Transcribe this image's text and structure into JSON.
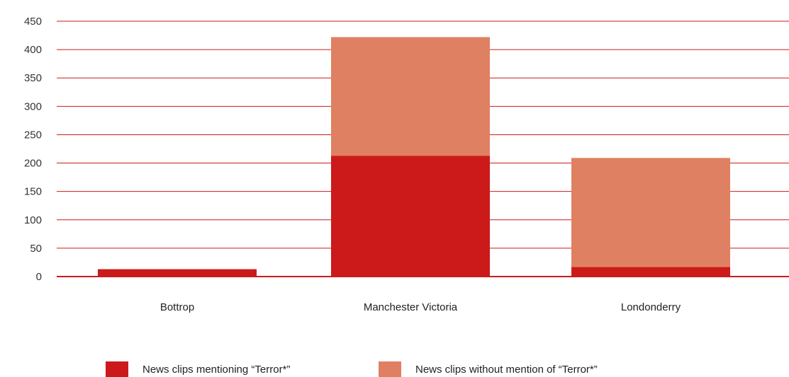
{
  "chart_data": {
    "type": "bar",
    "stacked": true,
    "categories": [
      "Bottrop",
      "Manchester Victoria",
      "Londonderry"
    ],
    "series": [
      {
        "name": "News clips mentioning “Terror*”",
        "values": [
          13,
          213,
          17
        ],
        "color": "#cc1a1a"
      },
      {
        "name": "News clips without mention of “Terror*”",
        "values": [
          0,
          209,
          192
        ],
        "color": "#e08062"
      }
    ],
    "yticks": [
      0,
      50,
      100,
      150,
      200,
      250,
      300,
      350,
      400,
      450
    ],
    "ylim": [
      0,
      450
    ],
    "grid": true,
    "grid_color": "#cc1a1a",
    "legend_position": "bottom"
  }
}
